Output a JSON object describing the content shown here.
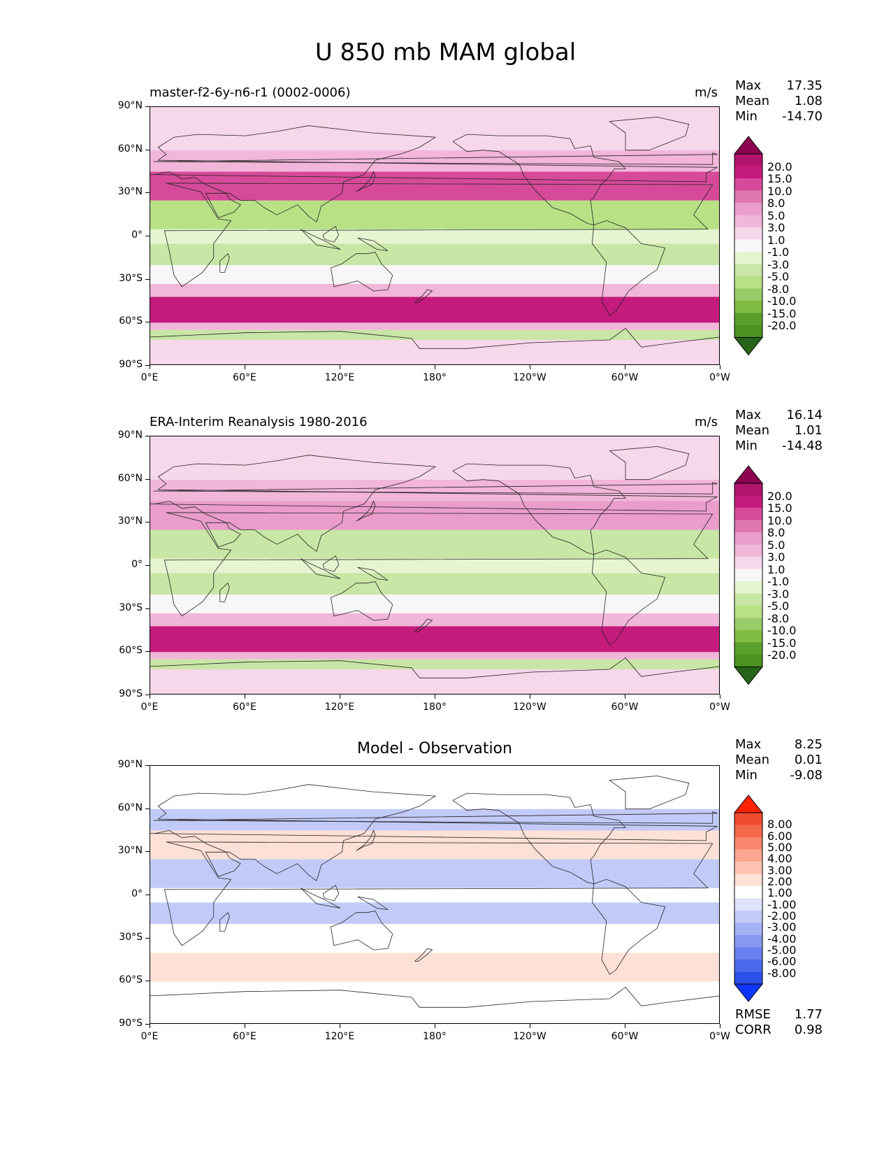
{
  "figure_title": "U 850 mb MAM global",
  "axes": {
    "yticks": [
      "90°N",
      "60°N",
      "30°N",
      "0°",
      "30°S",
      "60°S",
      "90°S"
    ],
    "xticks": [
      "0°E",
      "60°E",
      "120°E",
      "180°",
      "120°W",
      "60°W",
      "0°W"
    ]
  },
  "panels": [
    {
      "title": "master-f2-6y-n6-r1 (0002-0006)",
      "units": "m/s",
      "stats": {
        "max_label": "Max",
        "max": "17.35",
        "mean_label": "Mean",
        "mean": "1.08",
        "min_label": "Min",
        "min": "-14.70"
      },
      "colorbar_labels": [
        "20.0",
        "15.0",
        "10.0",
        "8.0",
        "5.0",
        "3.0",
        "1.0",
        "-1.0",
        "-3.0",
        "-5.0",
        "-8.0",
        "-10.0",
        "-15.0",
        "-20.0"
      ]
    },
    {
      "title": "ERA-Interim Reanalysis 1980-2016",
      "units": "m/s",
      "stats": {
        "max_label": "Max",
        "max": "16.14",
        "mean_label": "Mean",
        "mean": "1.01",
        "min_label": "Min",
        "min": "-14.48"
      },
      "colorbar_labels": [
        "20.0",
        "15.0",
        "10.0",
        "8.0",
        "5.0",
        "3.0",
        "1.0",
        "-1.0",
        "-3.0",
        "-5.0",
        "-8.0",
        "-10.0",
        "-15.0",
        "-20.0"
      ]
    },
    {
      "title": "Model - Observation",
      "stats": {
        "max_label": "Max",
        "max": "8.25",
        "mean_label": "Mean",
        "mean": "0.01",
        "min_label": "Min",
        "min": "-9.08"
      },
      "colorbar_labels": [
        "8.00",
        "6.00",
        "5.00",
        "4.00",
        "3.00",
        "2.00",
        "1.00",
        "-1.00",
        "-2.00",
        "-3.00",
        "-4.00",
        "-5.00",
        "-6.00",
        "-8.00"
      ],
      "metrics": {
        "rmse_label": "RMSE",
        "rmse": "1.77",
        "corr_label": "CORR",
        "corr": "0.98"
      }
    }
  ],
  "colors": {
    "piyg": [
      "#8e0152",
      "#b0156b",
      "#c51b7d",
      "#d64a99",
      "#de77ae",
      "#ea9ccb",
      "#f1b6da",
      "#f7d7ea",
      "#f7f7f7",
      "#e6f5d0",
      "#c8e6a5",
      "#b8e186",
      "#98cc68",
      "#7fbc41",
      "#5a9e2b",
      "#4d9221",
      "#276419"
    ],
    "bwr": [
      "#ff2200",
      "#f04a2e",
      "#f5674b",
      "#f9866c",
      "#fba58f",
      "#fdc2b2",
      "#fde0d6",
      "#ffffff",
      "#dfe3fb",
      "#c2cbf8",
      "#a4b2f5",
      "#8699f1",
      "#6881ee",
      "#4a68ea",
      "#2b4fe7",
      "#0d36ff"
    ]
  },
  "chart_data": [
    {
      "type": "heatmap",
      "title": "master-f2-6y-n6-r1 (0002-0006)",
      "variable": "U 850 mb MAM",
      "units": "m/s",
      "xlim": [
        0,
        360
      ],
      "ylim": [
        -90,
        90
      ],
      "levels": [
        -20,
        -15,
        -10,
        -8,
        -5,
        -3,
        -1,
        1,
        3,
        5,
        8,
        10,
        15,
        20
      ],
      "zonal_bands": [
        {
          "lat": [
            -90,
            -72
          ],
          "value": 1
        },
        {
          "lat": [
            -72,
            -65
          ],
          "value": -4
        },
        {
          "lat": [
            -65,
            -60
          ],
          "value": 4
        },
        {
          "lat": [
            -60,
            -42
          ],
          "value": 13
        },
        {
          "lat": [
            -42,
            -33
          ],
          "value": 4
        },
        {
          "lat": [
            -33,
            -20
          ],
          "value": -1
        },
        {
          "lat": [
            -20,
            -5
          ],
          "value": -4
        },
        {
          "lat": [
            -5,
            5
          ],
          "value": -3
        },
        {
          "lat": [
            5,
            25
          ],
          "value": -6
        },
        {
          "lat": [
            25,
            45
          ],
          "value": 8
        },
        {
          "lat": [
            45,
            60
          ],
          "value": 4
        },
        {
          "lat": [
            60,
            90
          ],
          "value": 1
        }
      ],
      "stats": {
        "max": 17.35,
        "mean": 1.08,
        "min": -14.7
      }
    },
    {
      "type": "heatmap",
      "title": "ERA-Interim Reanalysis 1980-2016",
      "variable": "U 850 mb MAM",
      "units": "m/s",
      "xlim": [
        0,
        360
      ],
      "ylim": [
        -90,
        90
      ],
      "levels": [
        -20,
        -15,
        -10,
        -8,
        -5,
        -3,
        -1,
        1,
        3,
        5,
        8,
        10,
        15,
        20
      ],
      "zonal_bands": [
        {
          "lat": [
            -90,
            -72
          ],
          "value": 2
        },
        {
          "lat": [
            -72,
            -65
          ],
          "value": -5
        },
        {
          "lat": [
            -65,
            -60
          ],
          "value": 3
        },
        {
          "lat": [
            -60,
            -42
          ],
          "value": 12
        },
        {
          "lat": [
            -42,
            -33
          ],
          "value": 4
        },
        {
          "lat": [
            -33,
            -20
          ],
          "value": -1
        },
        {
          "lat": [
            -20,
            -5
          ],
          "value": -4
        },
        {
          "lat": [
            -5,
            5
          ],
          "value": -2
        },
        {
          "lat": [
            5,
            25
          ],
          "value": -5
        },
        {
          "lat": [
            25,
            45
          ],
          "value": 6
        },
        {
          "lat": [
            45,
            60
          ],
          "value": 3
        },
        {
          "lat": [
            60,
            90
          ],
          "value": 1
        }
      ],
      "stats": {
        "max": 16.14,
        "mean": 1.01,
        "min": -14.48
      }
    },
    {
      "type": "heatmap",
      "title": "Model - Observation",
      "variable": "U 850 mb MAM difference",
      "units": "m/s",
      "xlim": [
        0,
        360
      ],
      "ylim": [
        -90,
        90
      ],
      "levels": [
        -8,
        -6,
        -5,
        -4,
        -3,
        -2,
        -1,
        1,
        2,
        3,
        4,
        5,
        6,
        8
      ],
      "zonal_bands": [
        {
          "lat": [
            -90,
            -72
          ],
          "value": 0
        },
        {
          "lat": [
            -72,
            -60
          ],
          "value": 0
        },
        {
          "lat": [
            -60,
            -40
          ],
          "value": 1.5
        },
        {
          "lat": [
            -40,
            -20
          ],
          "value": 0
        },
        {
          "lat": [
            -20,
            -5
          ],
          "value": -1.2
        },
        {
          "lat": [
            -5,
            5
          ],
          "value": 0.5
        },
        {
          "lat": [
            5,
            25
          ],
          "value": -1.5
        },
        {
          "lat": [
            25,
            45
          ],
          "value": 1.5
        },
        {
          "lat": [
            45,
            60
          ],
          "value": -1.2
        },
        {
          "lat": [
            60,
            90
          ],
          "value": 0
        }
      ],
      "stats": {
        "max": 8.25,
        "mean": 0.01,
        "min": -9.08,
        "rmse": 1.77,
        "corr": 0.98
      }
    }
  ]
}
